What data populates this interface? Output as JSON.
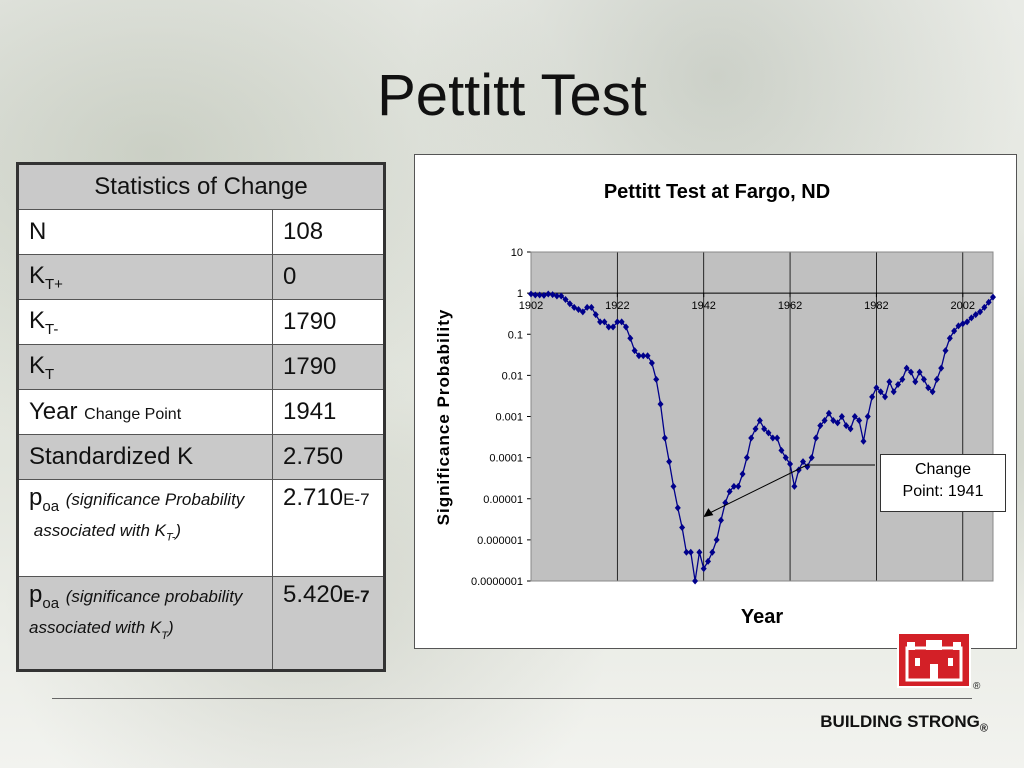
{
  "page": {
    "title": "Pettitt Test"
  },
  "stats_table": {
    "header": "Statistics of Change",
    "rows": [
      {
        "label": "N",
        "value": "108"
      },
      {
        "label_main": "K",
        "label_sub": "T+",
        "value": "0"
      },
      {
        "label_main": "K",
        "label_sub": "T-",
        "value": "1790"
      },
      {
        "label_main": "K",
        "label_sub": "T",
        "value": "1790"
      },
      {
        "label_main": "Year",
        "label_sub": "Change Point",
        "value": "1941"
      },
      {
        "label": "Standardized K",
        "value": "2.750"
      },
      {
        "label_main": "p",
        "label_sub": "oa",
        "note_a": "(significance Probability",
        "note_b": "associated with K",
        "note_sub": "T-",
        "note_end": ")",
        "value_main": "2.710",
        "value_exp": "E-7"
      },
      {
        "label_main": "p",
        "label_sub": "oa",
        "note_a": "(significance probability associated with K",
        "note_sub": "T",
        "note_end": ")",
        "value_main": "5.420",
        "value_exp": "E-7"
      }
    ]
  },
  "callout": {
    "line1": "Change",
    "line2": "Point: 1941"
  },
  "footer": {
    "brand": "BUILDING STRONG",
    "reg": "®"
  },
  "colors": {
    "series": "#00008b",
    "plot_bg": "#c0c0c0",
    "logo": "#d32027"
  },
  "chart_data": {
    "type": "line",
    "title": "Pettitt Test at Fargo, ND",
    "xlabel": "Year",
    "ylabel": "Significance Probability",
    "y_scale": "log",
    "ylim": [
      1e-07,
      10
    ],
    "xlim": [
      1902,
      2009
    ],
    "y_tick_labels": [
      "10",
      "1",
      "0.1",
      "0.01",
      "0.001",
      "0.0001",
      "0.00001",
      "0.000001",
      "0.0000001"
    ],
    "x_tick_labels": [
      "1902",
      "1922",
      "1942",
      "1962",
      "1982",
      "2002"
    ],
    "x_tick_values": [
      1902,
      1922,
      1942,
      1962,
      1982,
      2002
    ],
    "grid": true,
    "legend": "none",
    "annotations": [
      "Change Point: 1941"
    ],
    "series": [
      {
        "x": [
          1902,
          1903,
          1904,
          1905,
          1906,
          1907,
          1908,
          1909,
          1910,
          1911,
          1912,
          1913,
          1914,
          1915,
          1916,
          1917,
          1918,
          1919,
          1920,
          1921,
          1922,
          1923,
          1924,
          1925,
          1926,
          1927,
          1928,
          1929,
          1930,
          1931,
          1932,
          1933,
          1934,
          1935,
          1936,
          1937,
          1938,
          1939,
          1940,
          1941,
          1942,
          1943,
          1944,
          1945,
          1946,
          1947,
          1948,
          1949,
          1950,
          1951,
          1952,
          1953,
          1954,
          1955,
          1956,
          1957,
          1958,
          1959,
          1960,
          1961,
          1962,
          1963,
          1964,
          1965,
          1966,
          1967,
          1968,
          1969,
          1970,
          1971,
          1972,
          1973,
          1974,
          1975,
          1976,
          1977,
          1978,
          1979,
          1980,
          1981,
          1982,
          1983,
          1984,
          1985,
          1986,
          1987,
          1988,
          1989,
          1990,
          1991,
          1992,
          1993,
          1994,
          1995,
          1996,
          1997,
          1998,
          1999,
          2000,
          2001,
          2002,
          2003,
          2004,
          2005,
          2006,
          2007,
          2008,
          2009
        ],
        "y": [
          0.95,
          0.9,
          0.9,
          0.88,
          0.95,
          0.92,
          0.85,
          0.85,
          0.7,
          0.55,
          0.45,
          0.4,
          0.35,
          0.45,
          0.45,
          0.3,
          0.2,
          0.2,
          0.15,
          0.15,
          0.2,
          0.2,
          0.15,
          0.08,
          0.04,
          0.03,
          0.03,
          0.03,
          0.02,
          0.008,
          0.002,
          0.0003,
          8e-05,
          2e-05,
          6e-06,
          2e-06,
          5e-07,
          5e-07,
          1e-07,
          5e-07,
          2e-07,
          3e-07,
          5e-07,
          1e-06,
          3e-06,
          8e-06,
          1.5e-05,
          2e-05,
          2e-05,
          4e-05,
          0.0001,
          0.0003,
          0.0005,
          0.0008,
          0.0005,
          0.0004,
          0.0003,
          0.0003,
          0.00015,
          0.0001,
          7e-05,
          2e-05,
          5e-05,
          8e-05,
          6e-05,
          0.0001,
          0.0003,
          0.0006,
          0.0008,
          0.0012,
          0.0008,
          0.0007,
          0.001,
          0.0006,
          0.0005,
          0.001,
          0.0008,
          0.00025,
          0.001,
          0.003,
          0.005,
          0.004,
          0.003,
          0.007,
          0.004,
          0.006,
          0.008,
          0.015,
          0.012,
          0.007,
          0.012,
          0.008,
          0.005,
          0.004,
          0.008,
          0.015,
          0.04,
          0.08,
          0.12,
          0.16,
          0.18,
          0.2,
          0.25,
          0.3,
          0.35,
          0.45,
          0.6,
          0.8
        ]
      }
    ]
  }
}
